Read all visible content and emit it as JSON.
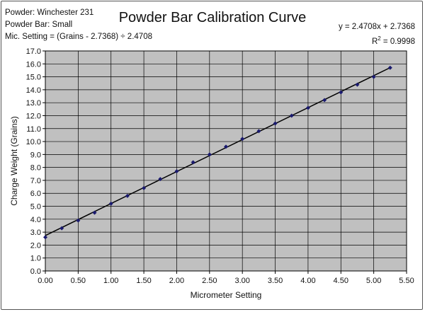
{
  "header": {
    "powder": "Powder: Winchester 231",
    "powder_bar": "Powder Bar: Small",
    "mic_setting": "Mic. Setting = (Grains - 2.7368) ÷ 2.4708",
    "equation": "y = 2.4708x + 2.7368",
    "r_squared_prefix": "R",
    "r_squared_sup": "2",
    "r_squared_value": " = 0.9998"
  },
  "chart_data": {
    "type": "scatter",
    "title": "Powder Bar Calibration Curve",
    "xlabel": "Micrometer Setting",
    "ylabel": "Charge Weight (Grains)",
    "xlim": [
      0,
      5.5
    ],
    "ylim": [
      0,
      17
    ],
    "x_ticks": [
      "0.00",
      "0.50",
      "1.00",
      "1.50",
      "2.00",
      "2.50",
      "3.00",
      "3.50",
      "4.00",
      "4.50",
      "5.00",
      "5.50"
    ],
    "y_ticks": [
      "0.0",
      "1.0",
      "2.0",
      "3.0",
      "4.0",
      "5.0",
      "6.0",
      "7.0",
      "8.0",
      "9.0",
      "10.0",
      "11.0",
      "12.0",
      "13.0",
      "14.0",
      "15.0",
      "16.0",
      "17.0"
    ],
    "grid": true,
    "plot_background": "#c0c0c0",
    "marker_color": "#1a1a6e",
    "trendline_color": "#000000",
    "series": [
      {
        "x": [
          0.0,
          0.25,
          0.5,
          0.75,
          1.0,
          1.25,
          1.5,
          1.75,
          2.0,
          2.25,
          2.5,
          2.75,
          3.0,
          3.25,
          3.5,
          3.75,
          4.0,
          4.25,
          4.5,
          4.75,
          5.0,
          5.25
        ],
        "values": [
          2.6,
          3.3,
          3.9,
          4.5,
          5.2,
          5.8,
          6.4,
          7.1,
          7.7,
          8.4,
          9.0,
          9.6,
          10.2,
          10.8,
          11.4,
          12.0,
          12.6,
          13.2,
          13.8,
          14.4,
          15.0,
          15.7
        ]
      }
    ],
    "trendline": {
      "slope": 2.4708,
      "intercept": 2.7368,
      "x_range": [
        0,
        5.25
      ]
    }
  }
}
